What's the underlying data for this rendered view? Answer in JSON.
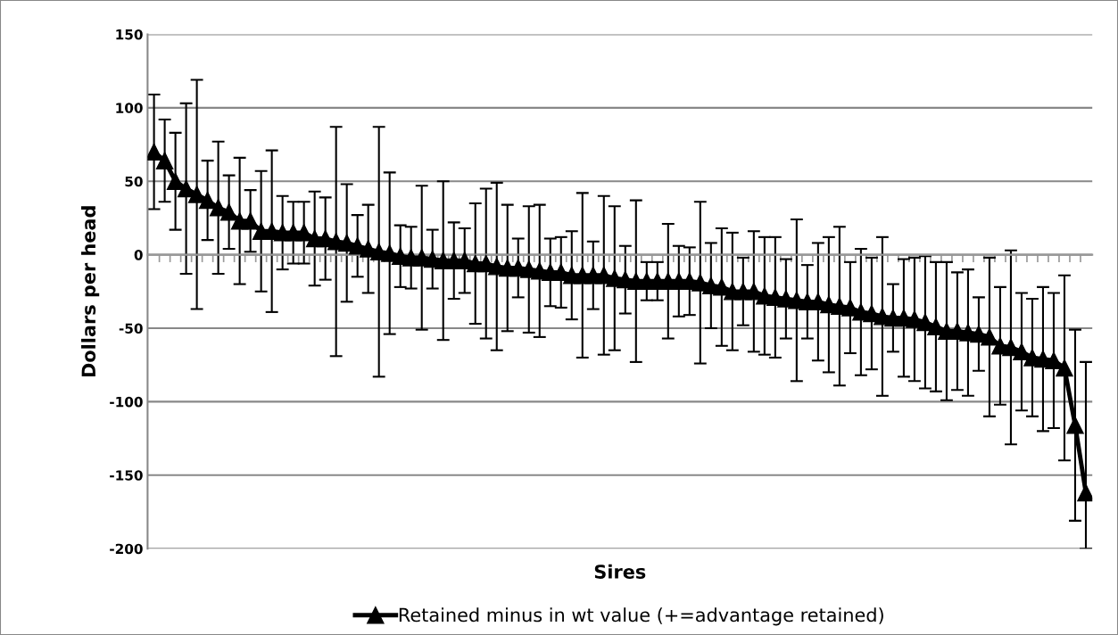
{
  "chart_data": {
    "type": "line",
    "xlabel": "Sires",
    "ylabel": "Dollars per head",
    "categories": [
      null,
      null,
      null,
      null,
      null,
      null,
      null,
      null,
      null,
      null,
      null,
      null,
      null,
      null,
      null,
      null,
      null,
      null,
      null,
      null,
      null,
      null,
      null,
      null,
      null,
      null,
      null,
      null,
      null,
      null,
      null,
      null,
      null,
      null,
      null,
      null,
      null,
      null,
      null,
      null,
      null,
      null,
      null,
      null,
      null,
      null,
      null,
      null,
      null,
      null,
      null,
      null,
      null,
      null,
      null,
      null,
      null,
      null,
      null,
      null,
      null,
      null,
      null,
      null,
      null,
      null,
      null,
      null,
      null,
      null,
      null,
      null,
      null,
      null,
      null,
      null,
      null,
      null,
      null,
      null,
      null,
      null,
      null,
      null,
      null,
      null,
      null,
      null
    ],
    "series": [
      {
        "name": "Retained minus in wt value (+=advantage retained)",
        "color": "#000000",
        "values": [
          70,
          64,
          50,
          45,
          41,
          37,
          32,
          29,
          23,
          23,
          16,
          16,
          15,
          15,
          15,
          11,
          11,
          9,
          8,
          6,
          4,
          2,
          1,
          -1,
          -2,
          -2,
          -3,
          -4,
          -4,
          -4,
          -6,
          -6,
          -8,
          -9,
          -9,
          -10,
          -11,
          -12,
          -12,
          -14,
          -14,
          -14,
          -14,
          -16,
          -17,
          -18,
          -18,
          -18,
          -18,
          -18,
          -18,
          -19,
          -21,
          -22,
          -25,
          -25,
          -25,
          -28,
          -29,
          -30,
          -31,
          -32,
          -32,
          -34,
          -35,
          -36,
          -39,
          -40,
          -42,
          -43,
          -43,
          -44,
          -46,
          -49,
          -52,
          -52,
          -53,
          -54,
          -56,
          -62,
          -63,
          -66,
          -70,
          -71,
          -72,
          -77,
          -116,
          -162
        ],
        "errors": [
          39,
          28,
          33,
          58,
          78,
          27,
          45,
          25,
          43,
          21,
          41,
          55,
          25,
          21,
          21,
          32,
          28,
          78,
          40,
          21,
          30,
          85,
          55,
          21,
          21,
          49,
          20,
          54,
          26,
          22,
          41,
          51,
          57,
          43,
          20,
          43,
          45,
          23,
          24,
          30,
          56,
          23,
          54,
          49,
          23,
          55,
          13,
          13,
          39,
          24,
          23,
          55,
          29,
          40,
          40,
          23,
          41,
          40,
          41,
          27,
          55,
          25,
          40,
          46,
          54,
          31,
          43,
          38,
          54,
          23,
          40,
          42,
          45,
          44,
          47,
          40,
          43,
          25,
          54,
          40,
          66,
          40,
          40,
          49,
          46,
          63,
          65,
          [
            -200,
            -73
          ]
        ]
      }
    ],
    "ylim": [
      -200,
      150
    ],
    "yticks": [
      -200,
      -150,
      -100,
      -50,
      0,
      50,
      100,
      150
    ],
    "grid": "y",
    "legend": "bottom",
    "marker": "triangle",
    "line_style": "solid",
    "tick_labels": "y"
  }
}
